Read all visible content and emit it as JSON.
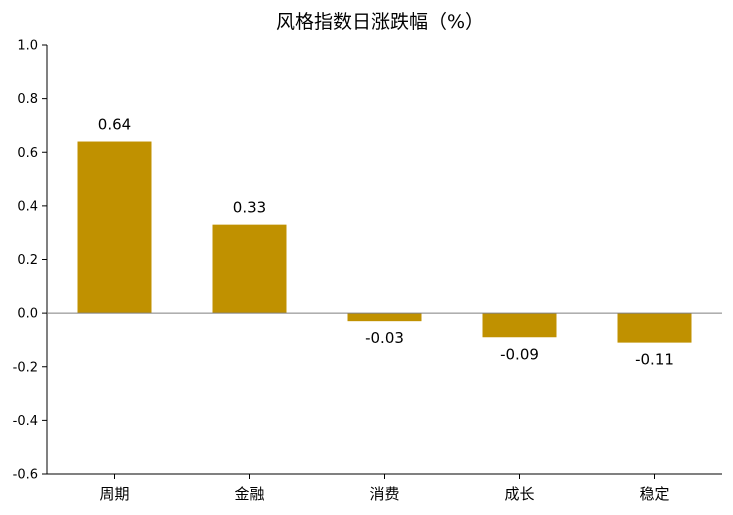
{
  "chart_data": {
    "type": "bar",
    "title": "风格指数日涨跌幅（%）",
    "categories": [
      "周期",
      "金融",
      "消费",
      "成长",
      "稳定"
    ],
    "values": [
      0.64,
      0.33,
      -0.03,
      -0.09,
      -0.11
    ],
    "data_labels": [
      "0.64",
      "0.33",
      "-0.03",
      "-0.09",
      "-0.11"
    ],
    "ylim": [
      -0.6,
      1.0
    ],
    "yticks": [
      "1.0",
      "0.8",
      "0.6",
      "0.4",
      "0.2",
      "0.0",
      "-0.2",
      "-0.4",
      "-0.6"
    ],
    "bar_color": "#C09100",
    "grid": false,
    "legend": "none",
    "xlabel": "",
    "ylabel": ""
  }
}
